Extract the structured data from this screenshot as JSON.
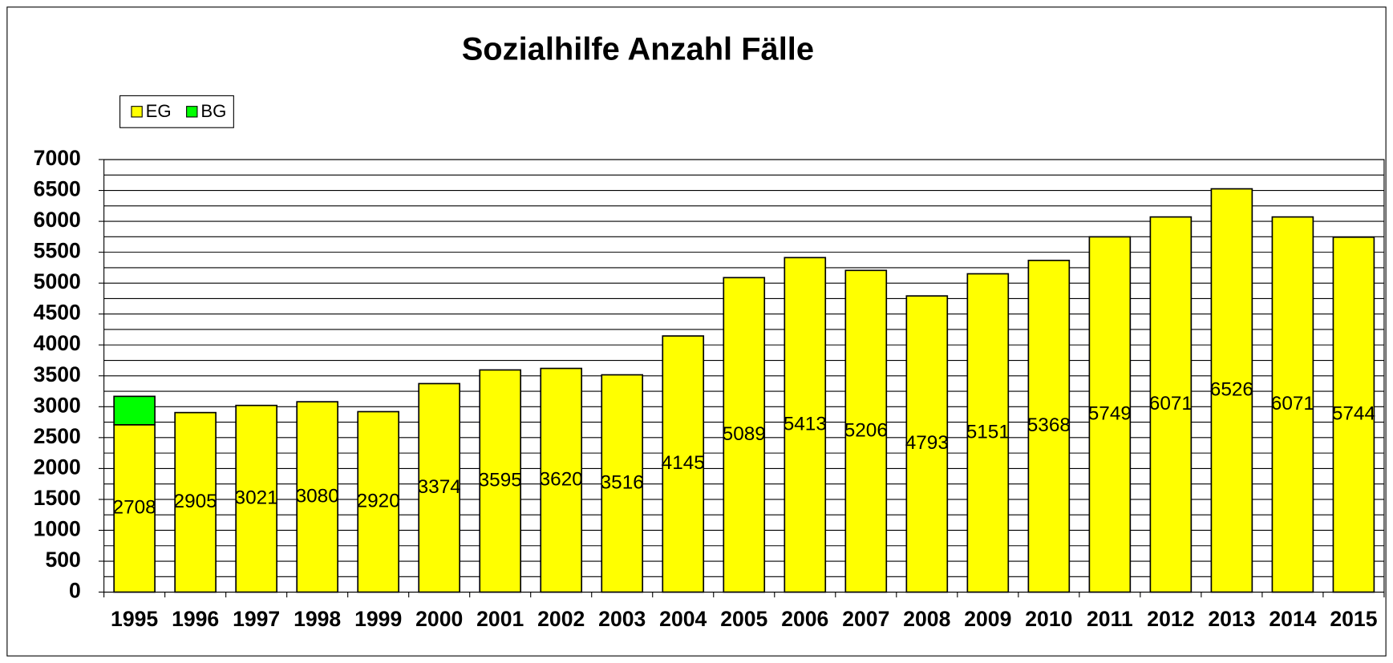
{
  "chart_data": {
    "type": "stacked_bar",
    "title": "Sozialhilfe Anzahl Fälle",
    "categories": [
      "1995",
      "1996",
      "1997",
      "1998",
      "1999",
      "2000",
      "2001",
      "2002",
      "2003",
      "2004",
      "2005",
      "2006",
      "2007",
      "2008",
      "2009",
      "2010",
      "2011",
      "2012",
      "2013",
      "2014",
      "2015"
    ],
    "series": [
      {
        "name": "EG",
        "color": "#ffff00",
        "values": [
          2708,
          2905,
          3021,
          3080,
          2920,
          3374,
          3595,
          3620,
          3516,
          4145,
          5089,
          5413,
          5206,
          4793,
          5151,
          5368,
          5749,
          6071,
          6526,
          6071,
          5744
        ]
      },
      {
        "name": "BG",
        "color": "#00ff00",
        "values": [
          460,
          0,
          0,
          0,
          0,
          0,
          0,
          0,
          0,
          0,
          0,
          0,
          0,
          0,
          0,
          0,
          0,
          0,
          0,
          0,
          0
        ]
      }
    ],
    "ylim": [
      0,
      7000
    ],
    "yticks": [
      0,
      500,
      1000,
      1500,
      2000,
      2500,
      3000,
      3500,
      4000,
      4500,
      5000,
      5500,
      6000,
      6500,
      7000
    ],
    "yminorticks": [
      250,
      750,
      1250,
      1750,
      2250,
      2750,
      3250,
      3750,
      4250,
      4750,
      5250,
      5750,
      6250,
      6750
    ],
    "grid": true,
    "legend": "top-left"
  }
}
